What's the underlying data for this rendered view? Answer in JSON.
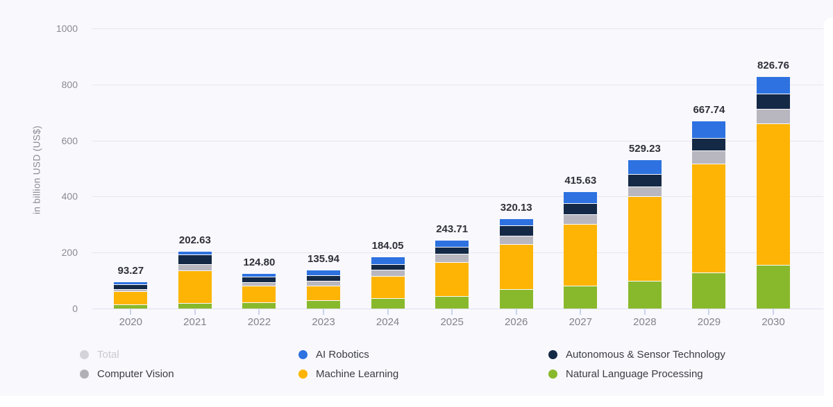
{
  "chart": {
    "y_axis_title": "in billion USD (US$)",
    "y_ticks": [
      "0",
      "200",
      "400",
      "600",
      "800",
      "1000"
    ]
  },
  "chart_data": {
    "type": "bar",
    "stacked": true,
    "title": "",
    "xlabel": "",
    "ylabel": "in billion USD (US$)",
    "ylim": [
      0,
      1000
    ],
    "grid": true,
    "legend_position": "bottom",
    "categories": [
      "2020",
      "2021",
      "2022",
      "2023",
      "2024",
      "2025",
      "2026",
      "2027",
      "2028",
      "2029",
      "2030"
    ],
    "series": [
      {
        "name": "Natural Language Processing",
        "color": "#88b92c",
        "values": [
          15,
          20,
          23,
          30,
          38,
          45,
          69,
          81,
          100,
          128,
          157
        ]
      },
      {
        "name": "Machine Learning",
        "color": "#fdb404",
        "values": [
          46,
          117,
          59.8,
          52,
          78,
          120,
          162,
          220,
          300,
          390,
          505
        ]
      },
      {
        "name": "Computer Vision",
        "color": "#b8b6bf",
        "values": [
          8,
          22,
          12,
          17,
          22,
          31,
          29,
          36,
          36,
          47,
          50
        ]
      },
      {
        "name": "Autonomous & Sensor Technology",
        "color": "#142946",
        "values": [
          18,
          33,
          18,
          20,
          21,
          25,
          36,
          40,
          45,
          44,
          55
        ]
      },
      {
        "name": "AI Robotics",
        "color": "#2d72e0",
        "values": [
          6.27,
          10.63,
          12,
          16.94,
          25.05,
          22.71,
          24.13,
          38.63,
          48.23,
          58.74,
          59.76
        ]
      }
    ],
    "totals": [
      93.27,
      202.63,
      124.8,
      135.94,
      184.05,
      243.71,
      320.13,
      415.63,
      529.23,
      667.74,
      826.76
    ],
    "total_labels": [
      "93.27",
      "202.63",
      "124.80",
      "135.94",
      "184.05",
      "243.71",
      "320.13",
      "415.63",
      "529.23",
      "667.74",
      "826.76"
    ]
  },
  "legend": {
    "columns": [
      [
        {
          "label": "Total",
          "color": "#d3d3d9",
          "disabled": true
        },
        {
          "label": "Computer Vision",
          "color": "#b0b0b6",
          "disabled": false
        }
      ],
      [
        {
          "label": "AI Robotics",
          "color": "#2d72e0",
          "disabled": false
        },
        {
          "label": "Machine Learning",
          "color": "#fdb404",
          "disabled": false
        }
      ],
      [
        {
          "label": "Autonomous & Sensor Technology",
          "color": "#142946",
          "disabled": false
        },
        {
          "label": "Natural Language Processing",
          "color": "#88b92c",
          "disabled": false
        }
      ]
    ]
  }
}
